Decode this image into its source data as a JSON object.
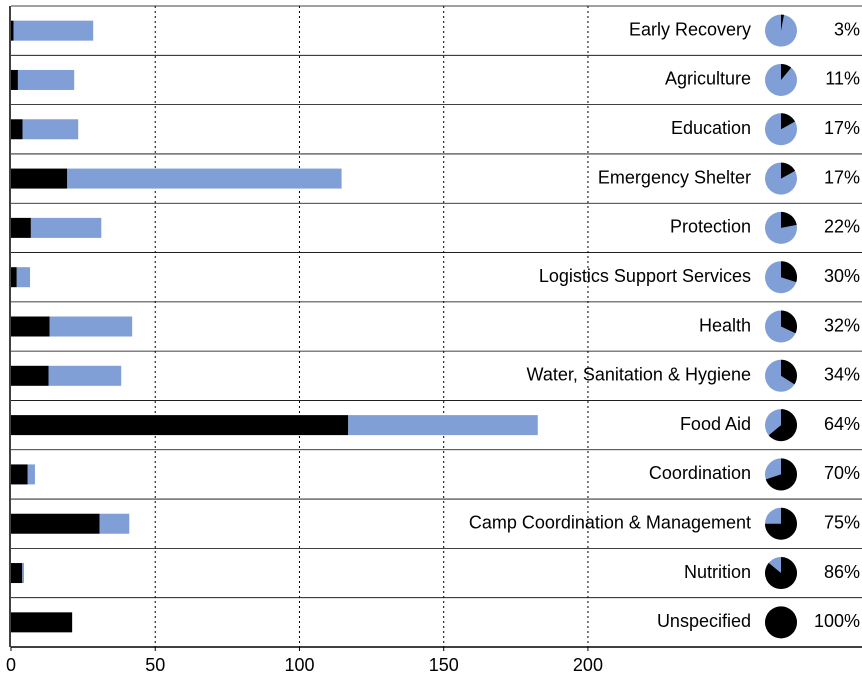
{
  "chart_data": {
    "type": "bar",
    "orientation": "horizontal",
    "stacked": true,
    "categories": [
      "Early Recovery",
      "Agriculture",
      "Education",
      "Emergency Shelter",
      "Protection",
      "Logistics Support Services",
      "Health",
      "Water, Sanitation & Hygiene",
      "Food Aid",
      "Coordination",
      "Camp Coordination & Management",
      "Nutrition",
      "Unspecified"
    ],
    "series": [
      {
        "color": "#000000",
        "values": [
          0.9,
          2.4,
          4,
          19.5,
          6.9,
          2,
          13.4,
          13,
          116.9,
          5.8,
          30.7,
          3.9,
          21.2
        ]
      },
      {
        "color": "#7f9fd6",
        "values": [
          27.6,
          19.5,
          19.3,
          95.1,
          24.4,
          4.6,
          28.6,
          25.2,
          65.7,
          2.5,
          10.3,
          0.6,
          0
        ]
      }
    ],
    "percentages": [
      3,
      11,
      17,
      17,
      22,
      30,
      32,
      34,
      64,
      70,
      75,
      86,
      100
    ],
    "percentage_labels": [
      "3%",
      "11%",
      "17%",
      "17%",
      "22%",
      "30%",
      "32%",
      "34%",
      "64%",
      "70%",
      "75%",
      "86%",
      "100%"
    ],
    "xlim": [
      0,
      295
    ],
    "xticks": [
      0,
      50,
      100,
      150,
      200
    ],
    "grid": true
  }
}
